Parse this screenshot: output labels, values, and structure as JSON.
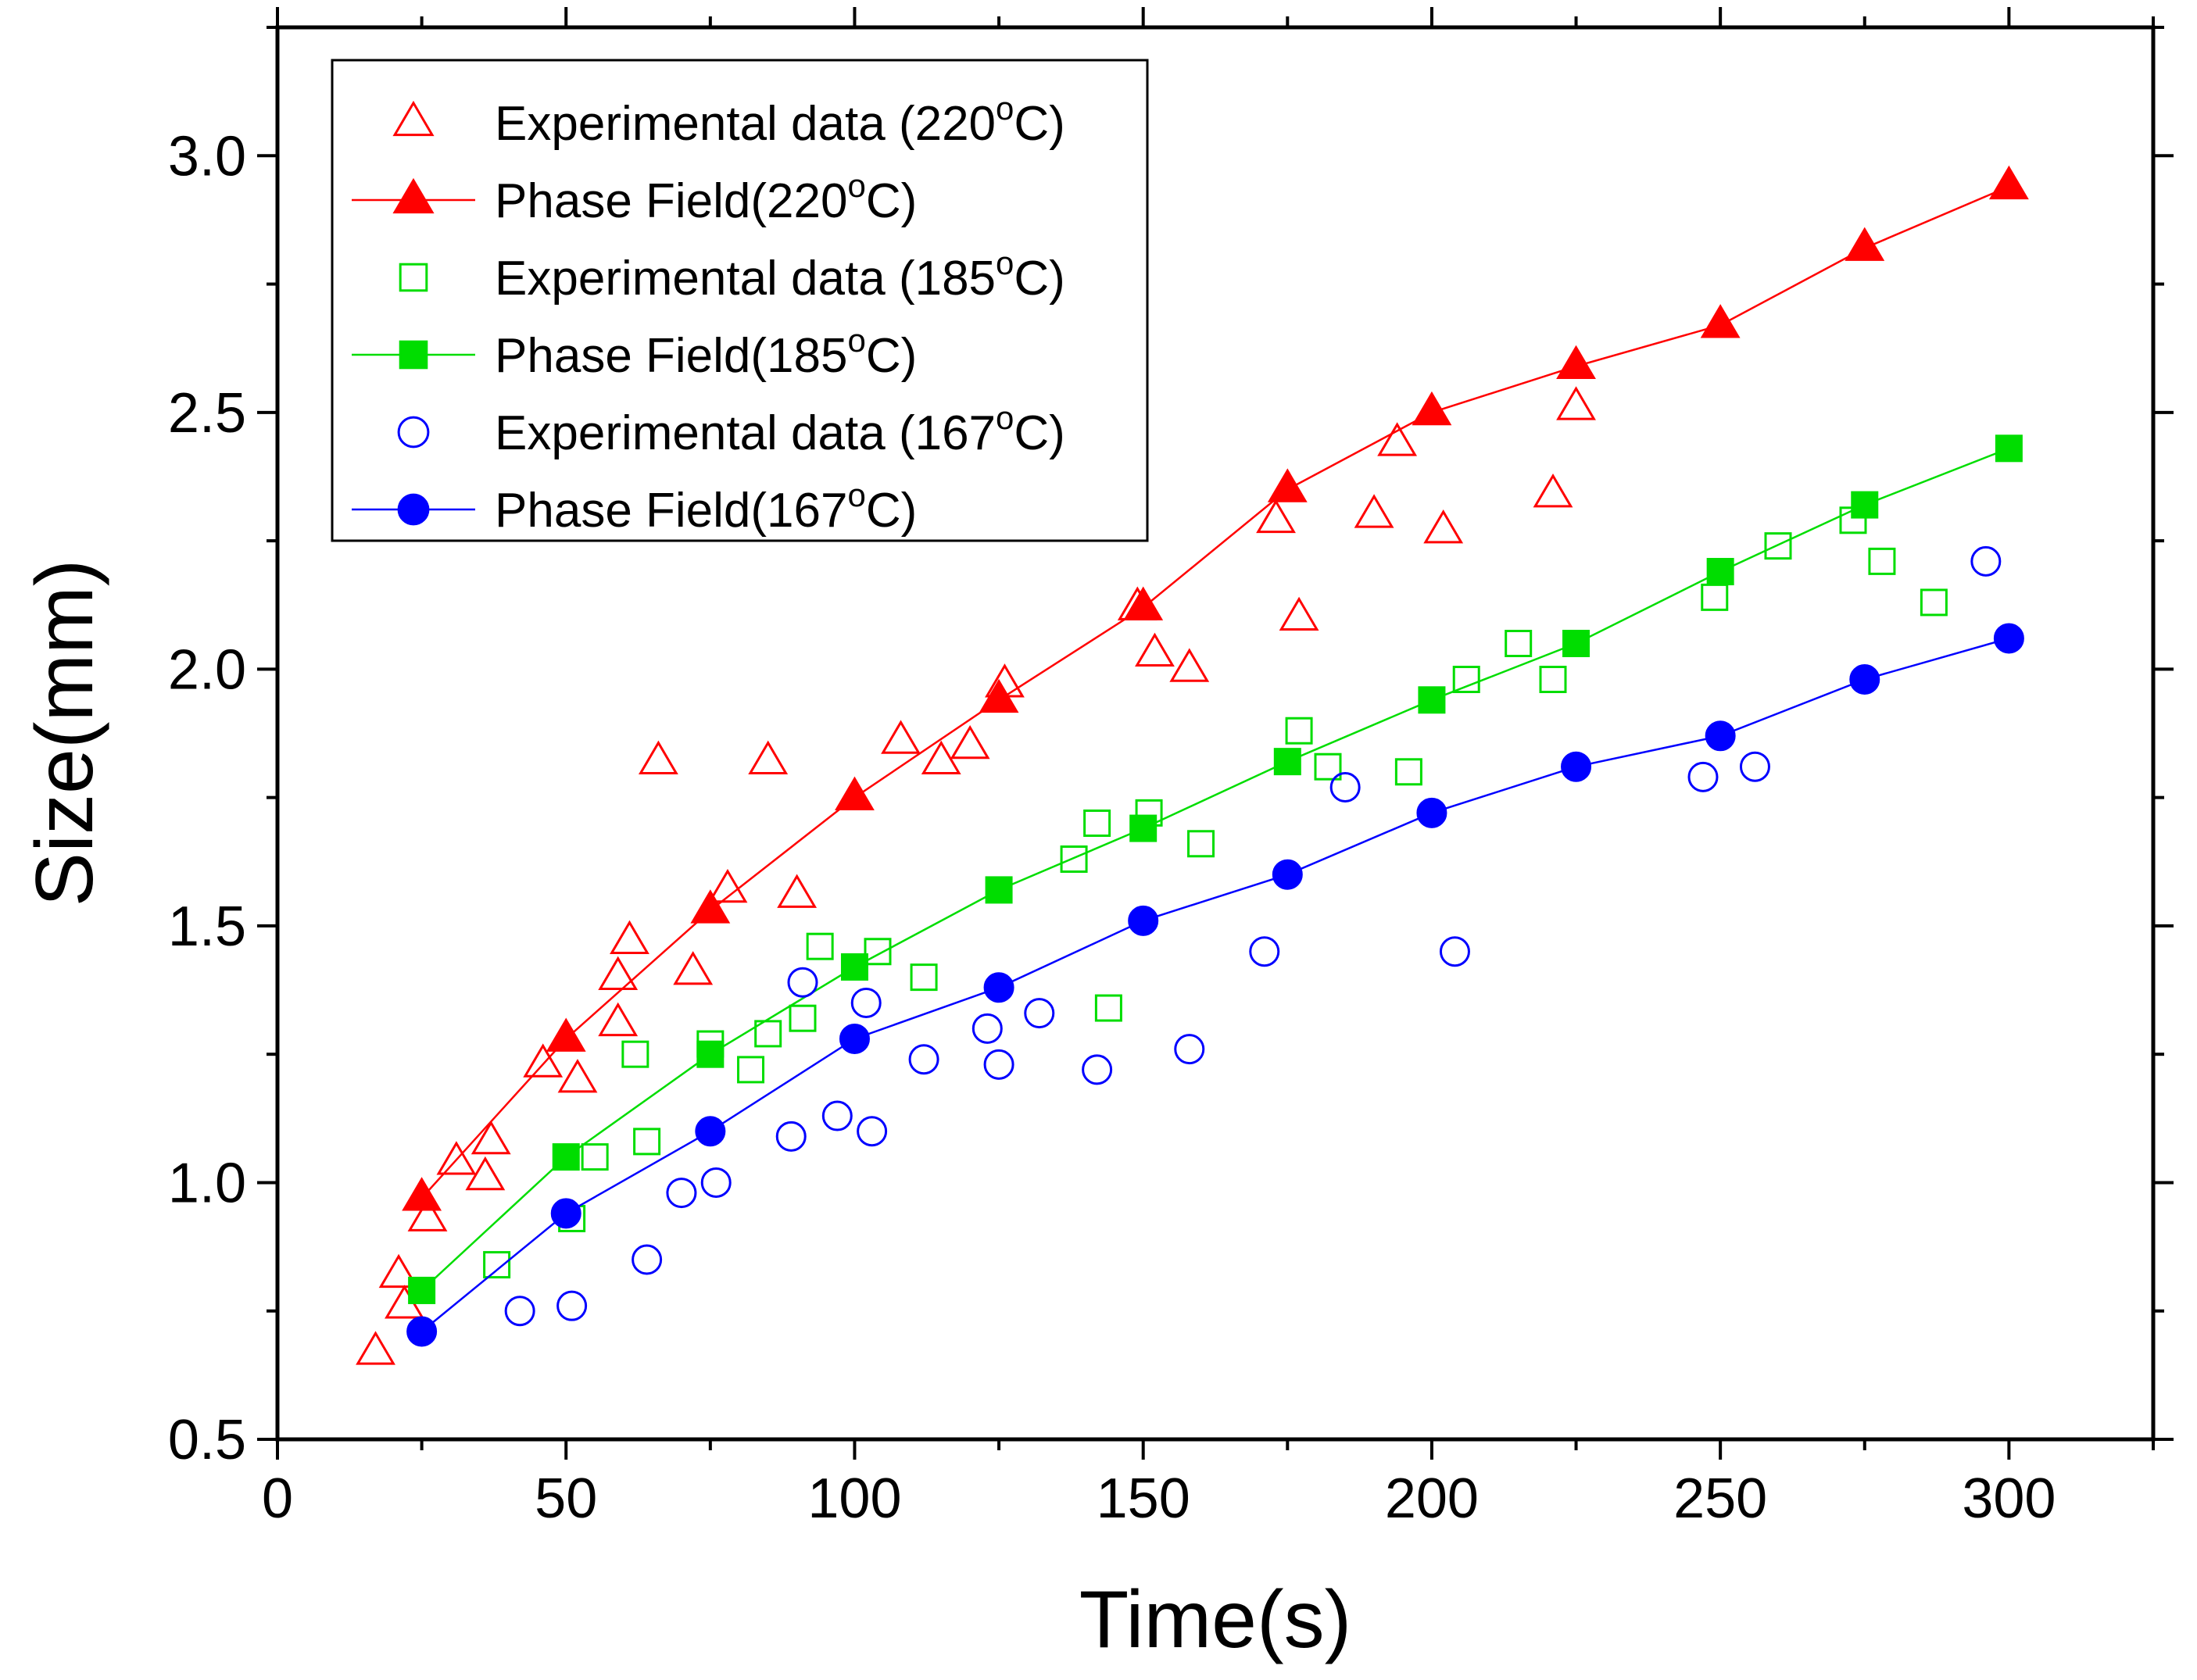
{
  "chart_data": {
    "type": "scatter",
    "xlabel": "Time(s)",
    "ylabel": "Size(mm)",
    "xlim": [
      0,
      325
    ],
    "ylim": [
      0.5,
      3.25
    ],
    "xticks": [
      0,
      50,
      100,
      150,
      200,
      250,
      300
    ],
    "xtick_labels": [
      "0",
      "50",
      "100",
      "150",
      "200",
      "250",
      "300"
    ],
    "yticks": [
      0.5,
      1.0,
      1.5,
      2.0,
      2.5,
      3.0
    ],
    "ytick_labels": [
      "0.5",
      "1.0",
      "1.5",
      "2.0",
      "2.5",
      "3.0"
    ],
    "grid": false,
    "legend_position": "top-left",
    "series": [
      {
        "name": "Experimental data (220°C)",
        "label_main": "Experimental data (220",
        "label_sup": "o",
        "label_end": "C)",
        "marker": "triangle",
        "filled": false,
        "line": false,
        "color": "#ff0000",
        "points": [
          [
            17,
            0.67
          ],
          [
            21,
            0.82
          ],
          [
            22,
            0.76
          ],
          [
            26,
            0.93
          ],
          [
            31,
            1.04
          ],
          [
            36,
            1.01
          ],
          [
            37,
            1.08
          ],
          [
            46,
            1.23
          ],
          [
            52,
            1.2
          ],
          [
            59,
            1.31
          ],
          [
            59,
            1.4
          ],
          [
            61,
            1.47
          ],
          [
            66,
            1.82
          ],
          [
            72,
            1.41
          ],
          [
            78,
            1.57
          ],
          [
            85,
            1.82
          ],
          [
            90,
            1.56
          ],
          [
            108,
            1.86
          ],
          [
            115,
            1.82
          ],
          [
            120,
            1.85
          ],
          [
            126,
            1.97
          ],
          [
            149,
            2.12
          ],
          [
            152,
            2.03
          ],
          [
            158,
            2.0
          ],
          [
            173,
            2.29
          ],
          [
            177,
            2.1
          ],
          [
            190,
            2.3
          ],
          [
            194,
            2.44
          ],
          [
            202,
            2.27
          ],
          [
            221,
            2.34
          ],
          [
            225,
            2.51
          ]
        ]
      },
      {
        "name": "Phase Field(220°C)",
        "label_main": "Phase Field(220",
        "label_sup": "o",
        "label_end": "C)",
        "marker": "triangle",
        "filled": true,
        "line": true,
        "color": "#ff0000",
        "points": [
          [
            25,
            0.97
          ],
          [
            50,
            1.28
          ],
          [
            75,
            1.53
          ],
          [
            100,
            1.75
          ],
          [
            125,
            1.94
          ],
          [
            150,
            2.12
          ],
          [
            175,
            2.35
          ],
          [
            200,
            2.5
          ],
          [
            225,
            2.59
          ],
          [
            250,
            2.67
          ],
          [
            275,
            2.82
          ],
          [
            300,
            2.94
          ]
        ]
      },
      {
        "name": "Experimental data (185°C)",
        "label_main": "Experimental data (185",
        "label_sup": "o",
        "label_end": "C)",
        "marker": "square",
        "filled": false,
        "line": false,
        "color": "#00dd00",
        "points": [
          [
            38,
            0.84
          ],
          [
            51,
            0.93
          ],
          [
            55,
            1.05
          ],
          [
            62,
            1.25
          ],
          [
            64,
            1.08
          ],
          [
            75,
            1.27
          ],
          [
            82,
            1.22
          ],
          [
            85,
            1.29
          ],
          [
            91,
            1.32
          ],
          [
            94,
            1.46
          ],
          [
            104,
            1.45
          ],
          [
            112,
            1.4
          ],
          [
            138,
            1.63
          ],
          [
            142,
            1.7
          ],
          [
            144,
            1.34
          ],
          [
            151,
            1.72
          ],
          [
            160,
            1.66
          ],
          [
            177,
            1.88
          ],
          [
            182,
            1.81
          ],
          [
            196,
            1.8
          ],
          [
            206,
            1.98
          ],
          [
            215,
            2.05
          ],
          [
            221,
            1.98
          ],
          [
            249,
            2.14
          ],
          [
            260,
            2.24
          ],
          [
            273,
            2.29
          ],
          [
            278,
            2.21
          ],
          [
            287,
            2.13
          ]
        ]
      },
      {
        "name": "Phase Field(185°C)",
        "label_main": "Phase Field(185",
        "label_sup": "o",
        "label_end": "C)",
        "marker": "square",
        "filled": true,
        "line": true,
        "color": "#00dd00",
        "points": [
          [
            25,
            0.79
          ],
          [
            50,
            1.05
          ],
          [
            75,
            1.25
          ],
          [
            100,
            1.42
          ],
          [
            125,
            1.57
          ],
          [
            150,
            1.69
          ],
          [
            175,
            1.82
          ],
          [
            200,
            1.94
          ],
          [
            225,
            2.05
          ],
          [
            250,
            2.19
          ],
          [
            275,
            2.32
          ],
          [
            300,
            2.43
          ]
        ]
      },
      {
        "name": "Experimental data (167°C)",
        "label_main": "Experimental data (167",
        "label_sup": "o",
        "label_end": "C)",
        "marker": "circle",
        "filled": false,
        "line": false,
        "color": "#0000ff",
        "points": [
          [
            42,
            0.75
          ],
          [
            51,
            0.76
          ],
          [
            64,
            0.85
          ],
          [
            70,
            0.98
          ],
          [
            76,
            1.0
          ],
          [
            89,
            1.09
          ],
          [
            91,
            1.39
          ],
          [
            97,
            1.13
          ],
          [
            102,
            1.35
          ],
          [
            103,
            1.1
          ],
          [
            112,
            1.24
          ],
          [
            123,
            1.3
          ],
          [
            125,
            1.23
          ],
          [
            132,
            1.33
          ],
          [
            142,
            1.22
          ],
          [
            158,
            1.26
          ],
          [
            171,
            1.45
          ],
          [
            185,
            1.77
          ],
          [
            204,
            1.45
          ],
          [
            247,
            1.79
          ],
          [
            256,
            1.81
          ],
          [
            296,
            2.21
          ]
        ]
      },
      {
        "name": "Phase Field(167°C)",
        "label_main": "Phase Field(167",
        "label_sup": "o",
        "label_end": "C)",
        "marker": "circle",
        "filled": true,
        "line": true,
        "color": "#0000ff",
        "points": [
          [
            25,
            0.71
          ],
          [
            50,
            0.94
          ],
          [
            75,
            1.1
          ],
          [
            100,
            1.28
          ],
          [
            125,
            1.38
          ],
          [
            150,
            1.51
          ],
          [
            175,
            1.6
          ],
          [
            200,
            1.72
          ],
          [
            225,
            1.81
          ],
          [
            250,
            1.87
          ],
          [
            275,
            1.98
          ],
          [
            300,
            2.06
          ]
        ]
      }
    ]
  }
}
